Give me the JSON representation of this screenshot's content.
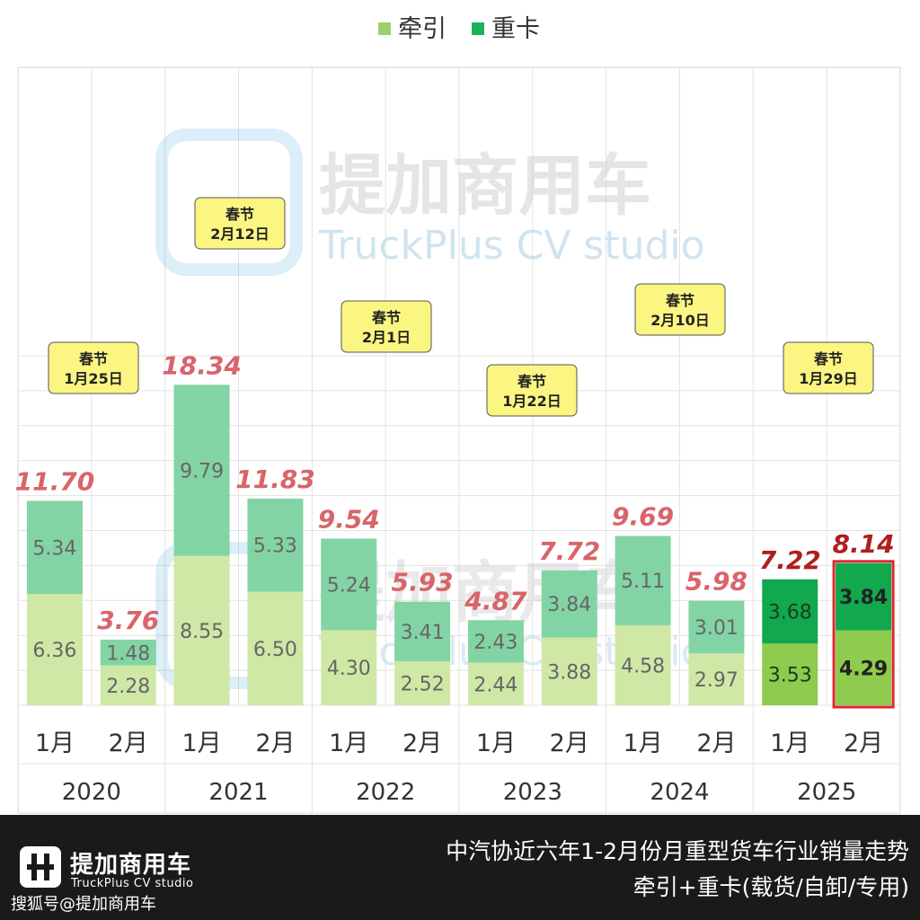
{
  "chart_data": {
    "type": "bar",
    "stacked": true,
    "legend": {
      "position": "top-center",
      "items": [
        {
          "name": "牵引",
          "color": "#9dd06a"
        },
        {
          "name": "重卡",
          "color": "#1cb25a"
        }
      ]
    },
    "years": [
      "2020",
      "2021",
      "2022",
      "2023",
      "2024",
      "2025"
    ],
    "month_labels": [
      "1月",
      "2月"
    ],
    "series": [
      {
        "name": "牵引",
        "values": [
          6.36,
          2.28,
          8.55,
          6.5,
          4.3,
          2.52,
          2.44,
          3.88,
          4.58,
          2.97,
          3.53,
          4.29
        ]
      },
      {
        "name": "重卡",
        "values": [
          5.34,
          1.48,
          9.79,
          5.33,
          5.24,
          3.41,
          2.43,
          3.84,
          5.11,
          3.01,
          3.68,
          3.84
        ]
      }
    ],
    "totals": [
      11.7,
      3.76,
      18.34,
      11.83,
      9.54,
      5.93,
      4.87,
      7.72,
      9.69,
      5.98,
      7.22,
      8.14
    ],
    "ylim": [
      0,
      20
    ],
    "grid": true,
    "highlight_index": 11,
    "annotations": [
      {
        "year": "2020",
        "line1": "春节",
        "line2": "1月25日"
      },
      {
        "year": "2021",
        "line1": "春节",
        "line2": "2月12日"
      },
      {
        "year": "2022",
        "line1": "春节",
        "line2": "2月1日"
      },
      {
        "year": "2023",
        "line1": "春节",
        "line2": "1月22日"
      },
      {
        "year": "2024",
        "line1": "春节",
        "line2": "2月10日"
      },
      {
        "year": "2025",
        "line1": "春节",
        "line2": "1月29日"
      }
    ],
    "watermark": {
      "cn": "提加商用车",
      "en": "TruckPlus CV studio"
    }
  },
  "colors": {
    "traction_light": "#cfe8a6",
    "heavy_light": "#83d4a4",
    "traction_2025": "#8ecb4e",
    "heavy_2025": "#11a84e",
    "highlight_border": "#e0262a",
    "total_label": "#d9646a",
    "total_label_2025": "#b01e1e",
    "annotation_bg": "#fbf582"
  },
  "footer": {
    "brand_cn": "提加商用车",
    "brand_en": "TruckPlus CV studio",
    "source": "搜狐号@提加商用车",
    "title": "中汽协近六年1-2月份月重型货车行业销量走势",
    "subtitle": "牵引+重卡(载货/自卸/专用)"
  }
}
